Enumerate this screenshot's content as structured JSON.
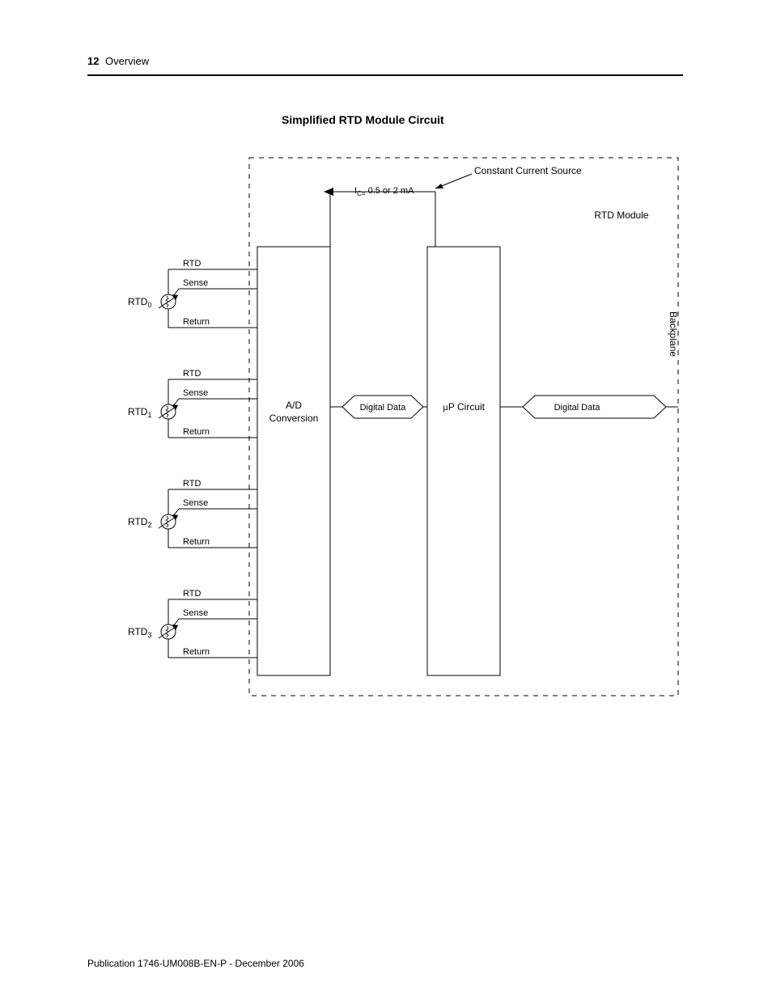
{
  "header": {
    "page_number": "12",
    "section": "Overview"
  },
  "title": "Simplified RTD Module Circuit",
  "footer": "Publication 1746-UM008B-EN-P - December 2006",
  "diagram": {
    "type": "flowchart",
    "background_color": "#ffffff",
    "stroke_color": "#000000",
    "font_family": "Arial",
    "label_fontsize": 12,
    "title_fontsize": 14,
    "dashed_pattern": "6,6",
    "current_source": {
      "label": "Constant Current Source",
      "ic_label_prefix": "I",
      "ic_label_sub": "C=",
      "ic_label_value": " 0.5 or 2 mA"
    },
    "module_label": "RTD Module",
    "backplane_label": "Backplane",
    "blocks": {
      "ad": {
        "line1": "A/D",
        "line2": "Conversion"
      },
      "up": {
        "prefix": "µ",
        "label": "P Circuit"
      },
      "dd1": "Digital Data",
      "dd2": "Digital Data"
    },
    "rtd_channels": [
      {
        "name": "RTD",
        "sub": "0",
        "line_rtd": "RTD",
        "line_sense": "Sense",
        "line_return": "Return"
      },
      {
        "name": "RTD",
        "sub": "1",
        "line_rtd": "RTD",
        "line_sense": "Sense",
        "line_return": "Return"
      },
      {
        "name": "RTD",
        "sub": "2",
        "line_rtd": "RTD",
        "line_sense": "Sense",
        "line_return": "Return"
      },
      {
        "name": "RTD",
        "sub": "3",
        "line_rtd": "RTD",
        "line_sense": "Sense",
        "line_return": "Return"
      }
    ]
  }
}
